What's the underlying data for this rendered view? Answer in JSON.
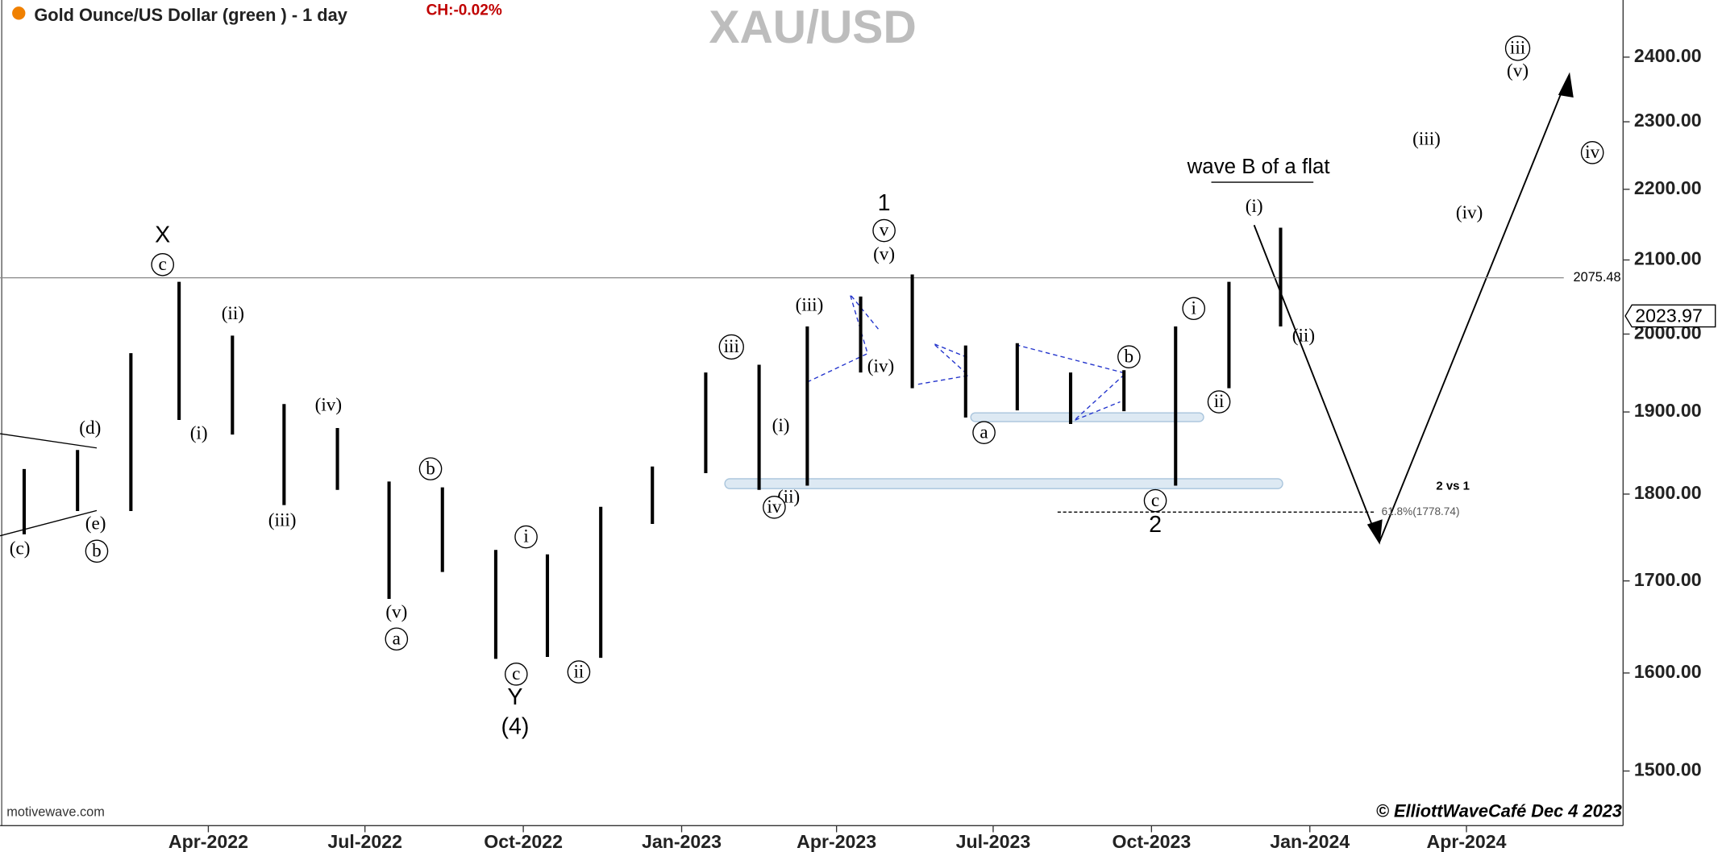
{
  "header": {
    "title": "Gold Ounce/US Dollar (green ) - 1 day",
    "change": "CH:-0.02%",
    "symbol": "XAU/USD"
  },
  "notes": {
    "wave_b": "wave B of a flat",
    "compare": "2 vs 1"
  },
  "footer": {
    "source": "motivewave.com",
    "credit": "© ElliottWaveCafé Dec 4 2023"
  },
  "chart_data": {
    "type": "range_bar",
    "color": "#000000",
    "x": [
      "2021-12",
      "2022-01",
      "2022-02",
      "2022-03",
      "2022-04",
      "2022-05",
      "2022-06",
      "2022-07",
      "2022-08",
      "2022-09",
      "2022-10",
      "2022-11",
      "2022-12",
      "2023-01",
      "2023-02",
      "2023-03",
      "2023-04",
      "2023-05",
      "2023-06",
      "2023-07",
      "2023-08",
      "2023-09",
      "2023-10",
      "2023-11",
      "2023-12"
    ],
    "high": [
      1830,
      1853,
      1975,
      2070,
      1998,
      1910,
      1880,
      1815,
      1808,
      1735,
      1730,
      1785,
      1833,
      1950,
      1960,
      2010,
      2050,
      2080,
      1985,
      1988,
      1950,
      1953,
      2010,
      2070,
      2145
    ],
    "low": [
      1753,
      1780,
      1780,
      1890,
      1872,
      1787,
      1805,
      1680,
      1710,
      1615,
      1617,
      1616,
      1765,
      1825,
      1805,
      1810,
      1950,
      1930,
      1893,
      1902,
      1885,
      1901,
      1810,
      1930,
      2010
    ],
    "xlim": [
      "2021-12",
      "2024-07"
    ],
    "xticks": [
      {
        "value": "2022-04",
        "label": "Apr-2022"
      },
      {
        "value": "2022-07",
        "label": "Jul-2022"
      },
      {
        "value": "2022-10",
        "label": "Oct-2022"
      },
      {
        "value": "2023-01",
        "label": "Jan-2023"
      },
      {
        "value": "2023-04",
        "label": "Apr-2023"
      },
      {
        "value": "2023-07",
        "label": "Jul-2023"
      },
      {
        "value": "2023-10",
        "label": "Oct-2023"
      },
      {
        "value": "2024-01",
        "label": "Jan-2024"
      },
      {
        "value": "2024-04",
        "label": "Apr-2024"
      }
    ],
    "ylim": [
      1447,
      2492
    ],
    "log_scale": true,
    "yticks": [
      {
        "value": 1500,
        "label": "1500.00"
      },
      {
        "value": 1600,
        "label": "1600.00"
      },
      {
        "value": 1700,
        "label": "1700.00"
      },
      {
        "value": 1800,
        "label": "1800.00"
      },
      {
        "value": 1900,
        "label": "1900.00"
      },
      {
        "value": 2000,
        "label": "2000.00"
      },
      {
        "value": 2100,
        "label": "2100.00"
      },
      {
        "value": 2200,
        "label": "2200.00"
      },
      {
        "value": 2300,
        "label": "2300.00"
      },
      {
        "value": 2400,
        "label": "2400.00"
      }
    ],
    "level_line": 2075.48,
    "last_price": 2023.97,
    "fib": {
      "value": 1778.74,
      "label": "61.8%(1778.74)"
    },
    "annotations": [
      {
        "text": "(c)"
      },
      {
        "text": "b",
        "circled": true
      },
      {
        "text": "(e)"
      },
      {
        "text": "(d)"
      },
      {
        "text": "X"
      },
      {
        "text": "c",
        "circled": true
      },
      {
        "text": "(i)"
      },
      {
        "text": "(ii)"
      },
      {
        "text": "(iii)"
      },
      {
        "text": "(iv)"
      },
      {
        "text": "b",
        "circled": true
      },
      {
        "text": "(v)"
      },
      {
        "text": "a",
        "circled": true
      },
      {
        "text": "i",
        "circled": true
      },
      {
        "text": "c",
        "circled": true
      },
      {
        "text": "Y"
      },
      {
        "text": "(4)"
      },
      {
        "text": "ii",
        "circled": true
      },
      {
        "text": "iii",
        "circled": true
      },
      {
        "text": "(i)"
      },
      {
        "text": "(ii)"
      },
      {
        "text": "iv",
        "circled": true
      },
      {
        "text": "(iii)"
      },
      {
        "text": "(iv)"
      },
      {
        "text": "(v)"
      },
      {
        "text": "v",
        "circled": true
      },
      {
        "text": "1"
      },
      {
        "text": "a",
        "circled": true
      },
      {
        "text": "b",
        "circled": true
      },
      {
        "text": "c",
        "circled": true
      },
      {
        "text": "2"
      },
      {
        "text": "i",
        "circled": true
      },
      {
        "text": "ii",
        "circled": true
      },
      {
        "text": "(i)"
      },
      {
        "text": "(ii)"
      },
      {
        "text": "(iii)"
      },
      {
        "text": "(iv)"
      },
      {
        "text": "iii",
        "circled": true
      },
      {
        "text": "(v)"
      },
      {
        "text": "iv",
        "circled": true
      }
    ]
  }
}
